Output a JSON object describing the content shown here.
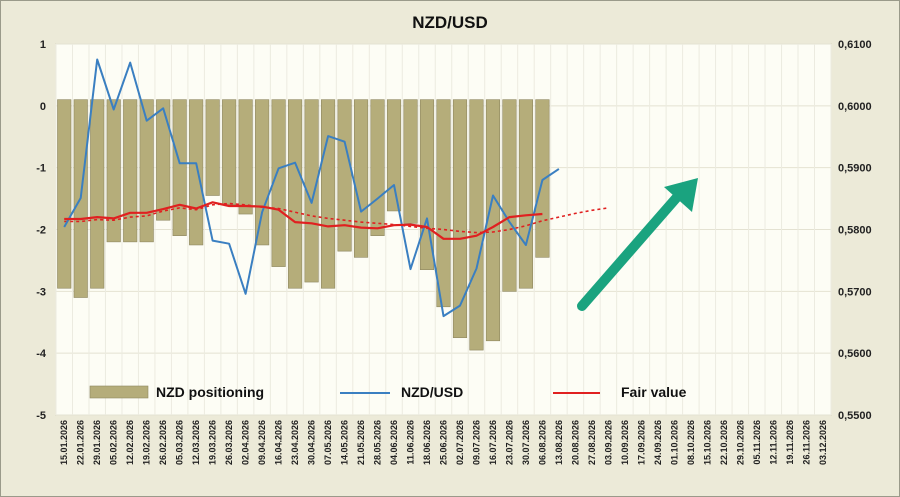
{
  "chart_data": {
    "type": "bar+line",
    "title": "NZD/USD",
    "left_axis": {
      "ylim": [
        -5,
        1
      ],
      "ticks": [
        "1",
        "0",
        "-1",
        "-2",
        "-3",
        "-4",
        "-5"
      ]
    },
    "right_axis": {
      "ylim": [
        0.55,
        0.61
      ],
      "ticks": [
        "0,6100",
        "0,6000",
        "0,5900",
        "0,5800",
        "0,5700",
        "0,5600",
        "0,5500"
      ]
    },
    "x_labels": [
      "15.01.2026",
      "22.01.2026",
      "29.01.2026",
      "05.02.2026",
      "12.02.2026",
      "19.02.2026",
      "26.02.2026",
      "05.03.2026",
      "12.03.2026",
      "19.03.2026",
      "26.03.2026",
      "02.04.2026",
      "09.04.2026",
      "16.04.2026",
      "23.04.2026",
      "30.04.2026",
      "07.05.2026",
      "14.05.2026",
      "21.05.2026",
      "28.05.2026",
      "04.06.2026",
      "11.06.2026",
      "18.06.2026",
      "25.06.2026",
      "02.07.2026",
      "09.07.2026",
      "16.07.2026",
      "23.07.2026",
      "30.07.2026",
      "06.08.2026",
      "13.08.2026",
      "20.08.2026",
      "27.08.2026",
      "03.09.2026",
      "10.09.2026",
      "17.09.2026",
      "24.09.2026",
      "01.10.2026",
      "08.10.2026",
      "15.10.2026",
      "22.10.2026",
      "29.10.2026",
      "05.11.2026",
      "12.11.2026",
      "19.11.2026",
      "26.11.2026",
      "03.12.2026"
    ],
    "series": [
      {
        "name": "NZD positioning",
        "axis": "left",
        "color": "#b5ad7a",
        "values": [
          -2.95,
          -3.1,
          -2.95,
          -2.2,
          -2.2,
          -2.2,
          -1.85,
          -2.1,
          -2.25,
          -1.45,
          -1.6,
          -1.75,
          -2.25,
          -2.6,
          -2.95,
          -2.85,
          -2.95,
          -2.35,
          -2.45,
          -2.1,
          -1.7,
          -1.9,
          -2.65,
          -3.25,
          -3.75,
          -3.95,
          -3.8,
          -3.0,
          -2.95,
          -2.45
        ]
      },
      {
        "name": "NZD/USD",
        "axis": "right",
        "color": "#3a7fc1",
        "values": [
          0.5804,
          0.5851,
          0.6075,
          0.5994,
          0.607,
          0.5976,
          0.5996,
          0.5907,
          0.5907,
          0.5782,
          0.5777,
          0.5696,
          0.5828,
          0.5899,
          0.5908,
          0.5843,
          0.5951,
          0.5942,
          0.5829,
          0.585,
          0.5872,
          0.5736,
          0.5818,
          0.566,
          0.5677,
          0.5737,
          0.5855,
          0.5812,
          0.5775,
          0.588,
          0.5898
        ]
      },
      {
        "name": "Fair value",
        "axis": "right",
        "color": "#e02020",
        "values": [
          0.5817,
          0.5817,
          0.582,
          0.5818,
          0.5827,
          0.5827,
          0.5833,
          0.584,
          0.5834,
          0.5844,
          0.5838,
          0.5838,
          0.5837,
          0.5832,
          0.5812,
          0.581,
          0.5805,
          0.5807,
          0.5803,
          0.5802,
          0.5807,
          0.5808,
          0.5804,
          0.5785,
          0.5785,
          0.579,
          0.5804,
          0.582,
          0.5823,
          0.5825
        ]
      },
      {
        "name": "Fair value (projection)",
        "axis": "right",
        "color": "#e02020",
        "dashed": true,
        "values": [
          0.5813,
          0.5813,
          0.5816,
          0.5815,
          0.582,
          0.5822,
          0.583,
          0.5835,
          0.5832,
          0.584,
          0.5842,
          0.584,
          0.5836,
          0.5834,
          0.5828,
          0.5822,
          0.5818,
          0.5815,
          0.5812,
          0.581,
          0.5808,
          0.5805,
          0.5802,
          0.58,
          0.5797,
          0.5795,
          0.5796,
          0.58,
          0.5806,
          0.5814,
          0.582,
          0.5826,
          0.5831,
          0.5835
        ]
      }
    ],
    "legend": [
      {
        "label": "NZD positioning",
        "kind": "bar",
        "color": "#b5ad7a"
      },
      {
        "label": "NZD/USD",
        "kind": "line",
        "color": "#3a7fc1"
      },
      {
        "label": "Fair value",
        "kind": "line",
        "color": "#e02020"
      }
    ],
    "annotation": {
      "kind": "arrow",
      "color": "#1aa37f",
      "direction": "up-right"
    },
    "grid": true
  }
}
